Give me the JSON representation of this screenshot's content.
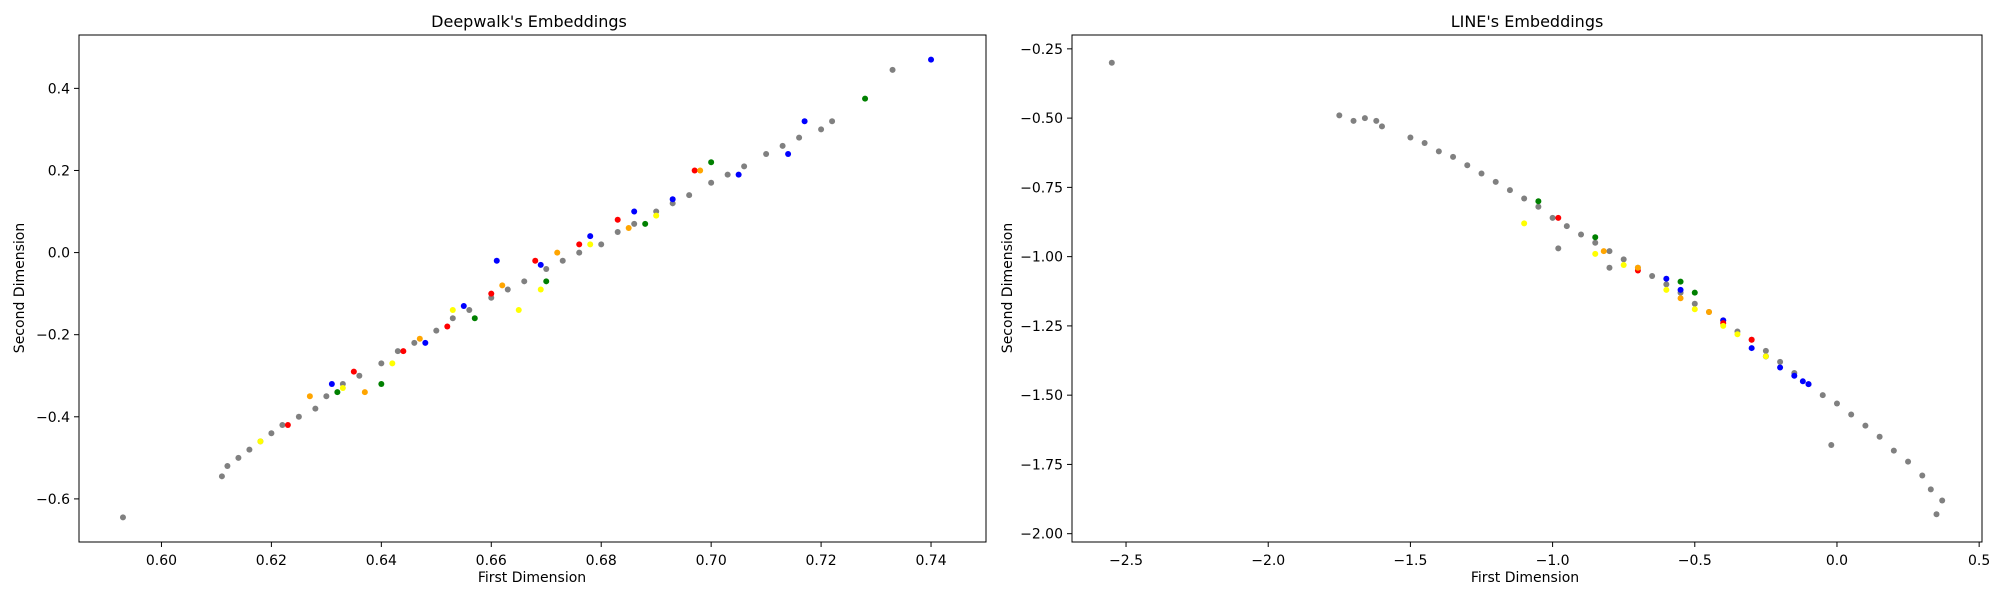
{
  "chart_data": [
    {
      "type": "scatter",
      "title": "Deepwalk's Embeddings",
      "xlabel": "First Dimension",
      "ylabel": "Second Dimension",
      "xlim": [
        0.585,
        0.75
      ],
      "ylim": [
        -0.705,
        0.53
      ],
      "xticks": [
        0.6,
        0.62,
        0.64,
        0.66,
        0.68,
        0.7,
        0.72,
        0.74
      ],
      "xtick_labels": [
        "0.60",
        "0.62",
        "0.64",
        "0.66",
        "0.68",
        "0.70",
        "0.72",
        "0.74"
      ],
      "yticks": [
        -0.6,
        -0.4,
        -0.2,
        0.0,
        0.2,
        0.4
      ],
      "ytick_labels": [
        "−0.6",
        "−0.4",
        "−0.2",
        "0.0",
        "0.2",
        "0.4"
      ],
      "grid": false,
      "legend": "none",
      "series": [
        {
          "color": "#808080",
          "x": [
            0.593,
            0.611,
            0.612,
            0.614,
            0.616,
            0.618,
            0.62,
            0.622,
            0.625,
            0.628,
            0.63,
            0.633,
            0.636,
            0.64,
            0.643,
            0.646,
            0.65,
            0.653,
            0.656,
            0.66,
            0.663,
            0.666,
            0.67,
            0.673,
            0.676,
            0.68,
            0.683,
            0.686,
            0.69,
            0.693,
            0.696,
            0.7,
            0.703,
            0.706,
            0.71,
            0.713,
            0.716,
            0.72,
            0.722,
            0.733
          ],
          "y": [
            -0.645,
            -0.545,
            -0.52,
            -0.5,
            -0.48,
            -0.46,
            -0.44,
            -0.42,
            -0.4,
            -0.38,
            -0.35,
            -0.32,
            -0.3,
            -0.27,
            -0.24,
            -0.22,
            -0.19,
            -0.16,
            -0.14,
            -0.11,
            -0.09,
            -0.07,
            -0.04,
            -0.02,
            0.0,
            0.02,
            0.05,
            0.07,
            0.1,
            0.12,
            0.14,
            0.17,
            0.19,
            0.21,
            0.24,
            0.26,
            0.28,
            0.3,
            0.32,
            0.445
          ]
        },
        {
          "color": "#0000ff",
          "x": [
            0.631,
            0.648,
            0.655,
            0.661,
            0.669,
            0.678,
            0.686,
            0.693,
            0.705,
            0.714,
            0.717,
            0.74
          ],
          "y": [
            -0.32,
            -0.22,
            -0.13,
            -0.02,
            -0.03,
            0.04,
            0.1,
            0.13,
            0.19,
            0.24,
            0.32,
            0.47
          ]
        },
        {
          "color": "#ff0000",
          "x": [
            0.623,
            0.635,
            0.644,
            0.652,
            0.66,
            0.668,
            0.676,
            0.683,
            0.697
          ],
          "y": [
            -0.42,
            -0.29,
            -0.24,
            -0.18,
            -0.1,
            -0.02,
            0.02,
            0.08,
            0.2
          ]
        },
        {
          "color": "#008000",
          "x": [
            0.632,
            0.64,
            0.657,
            0.67,
            0.688,
            0.7,
            0.728
          ],
          "y": [
            -0.34,
            -0.32,
            -0.16,
            -0.07,
            0.07,
            0.22,
            0.375
          ]
        },
        {
          "color": "#ffa500",
          "x": [
            0.627,
            0.637,
            0.647,
            0.662,
            0.672,
            0.685,
            0.698
          ],
          "y": [
            -0.35,
            -0.34,
            -0.21,
            -0.08,
            0.0,
            0.06,
            0.2
          ]
        },
        {
          "color": "#ffff00",
          "x": [
            0.618,
            0.633,
            0.642,
            0.653,
            0.665,
            0.669,
            0.678,
            0.69
          ],
          "y": [
            -0.46,
            -0.33,
            -0.27,
            -0.14,
            -0.14,
            -0.09,
            0.02,
            0.09
          ]
        }
      ]
    },
    {
      "type": "scatter",
      "title": "LINE's Embeddings",
      "xlabel": "First Dimension",
      "ylabel": "Second Dimension",
      "xlim": [
        -2.69,
        0.51
      ],
      "ylim": [
        -2.03,
        -0.2
      ],
      "xticks": [
        -2.5,
        -2.0,
        -1.5,
        -1.0,
        -0.5,
        0.0,
        0.5
      ],
      "xtick_labels": [
        "−2.5",
        "−2.0",
        "−1.5",
        "−1.0",
        "−0.5",
        "0.0",
        "0.5"
      ],
      "yticks": [
        -0.25,
        -0.5,
        -0.75,
        -1.0,
        -1.25,
        -1.5,
        -1.75,
        -2.0
      ],
      "ytick_labels": [
        "−0.25",
        "−0.50",
        "−0.75",
        "−1.00",
        "−1.25",
        "−1.50",
        "−1.75",
        "−2.00"
      ],
      "grid": false,
      "legend": "none",
      "series": [
        {
          "color": "#808080",
          "x": [
            -2.55,
            -1.75,
            -1.7,
            -1.66,
            -1.62,
            -1.6,
            -1.5,
            -1.45,
            -1.4,
            -1.35,
            -1.3,
            -1.25,
            -1.2,
            -1.15,
            -1.1,
            -1.05,
            -1.0,
            -0.95,
            -0.9,
            -0.85,
            -0.8,
            -0.75,
            -0.7,
            -0.65,
            -0.6,
            -0.55,
            -0.5,
            -0.45,
            -0.4,
            -0.35,
            -0.3,
            -0.25,
            -0.2,
            -0.15,
            -0.1,
            -0.05,
            0.0,
            0.05,
            0.1,
            0.15,
            0.2,
            0.25,
            0.3,
            0.33,
            0.35,
            0.37,
            -0.02,
            -0.8,
            -0.98
          ],
          "y": [
            -0.3,
            -0.49,
            -0.51,
            -0.5,
            -0.51,
            -0.53,
            -0.57,
            -0.59,
            -0.62,
            -0.64,
            -0.67,
            -0.7,
            -0.73,
            -0.76,
            -0.79,
            -0.82,
            -0.86,
            -0.89,
            -0.92,
            -0.95,
            -0.98,
            -1.01,
            -1.04,
            -1.07,
            -1.1,
            -1.13,
            -1.17,
            -1.2,
            -1.23,
            -1.27,
            -1.3,
            -1.34,
            -1.38,
            -1.42,
            -1.46,
            -1.5,
            -1.53,
            -1.57,
            -1.61,
            -1.65,
            -1.7,
            -1.74,
            -1.79,
            -1.84,
            -1.93,
            -1.88,
            -1.68,
            -1.04,
            -0.97
          ]
        },
        {
          "color": "#0000ff",
          "x": [
            -0.6,
            -0.55,
            -0.4,
            -0.3,
            -0.25,
            -0.2,
            -0.15,
            -0.12,
            -0.1
          ],
          "y": [
            -1.08,
            -1.12,
            -1.23,
            -1.33,
            -1.36,
            -1.4,
            -1.43,
            -1.45,
            -1.46
          ]
        },
        {
          "color": "#ff0000",
          "x": [
            -0.98,
            -0.7,
            -0.4,
            -0.3
          ],
          "y": [
            -0.86,
            -1.05,
            -1.24,
            -1.3
          ]
        },
        {
          "color": "#008000",
          "x": [
            -1.05,
            -0.85,
            -0.55,
            -0.5
          ],
          "y": [
            -0.8,
            -0.93,
            -1.09,
            -1.13
          ]
        },
        {
          "color": "#ffa500",
          "x": [
            -0.82,
            -0.7,
            -0.55,
            -0.45
          ],
          "y": [
            -0.98,
            -1.04,
            -1.15,
            -1.2
          ]
        },
        {
          "color": "#ffff00",
          "x": [
            -1.1,
            -0.85,
            -0.75,
            -0.6,
            -0.5,
            -0.4,
            -0.35,
            -0.25
          ],
          "y": [
            -0.88,
            -0.99,
            -1.03,
            -1.12,
            -1.19,
            -1.25,
            -1.28,
            -1.36
          ]
        }
      ]
    }
  ]
}
